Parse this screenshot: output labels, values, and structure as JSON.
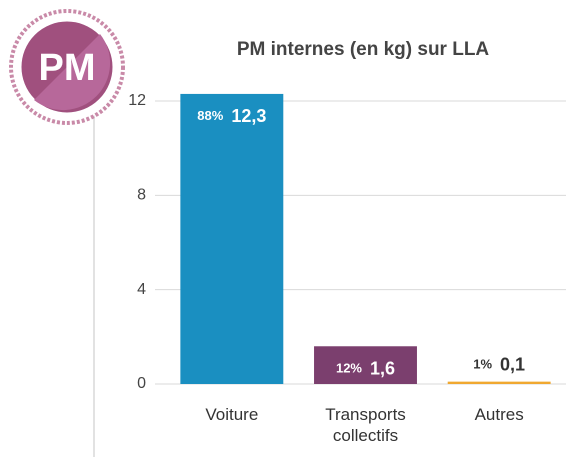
{
  "logo": "PM",
  "chart_data": {
    "type": "bar",
    "title": "PM internes (en kg) sur LLA",
    "categories": [
      "Voiture",
      "Transports collectifs",
      "Autres"
    ],
    "values": [
      12.3,
      1.6,
      0.1
    ],
    "value_labels": [
      "12,3",
      "1,6",
      "0,1"
    ],
    "share_labels": [
      "88%",
      "12%",
      "1%"
    ],
    "colors": [
      "#1a8fc1",
      "#7b3f6e",
      "#f0a830"
    ],
    "ylim": [
      0,
      12
    ],
    "yticks": [
      0,
      4,
      8,
      12
    ],
    "grid": true
  }
}
